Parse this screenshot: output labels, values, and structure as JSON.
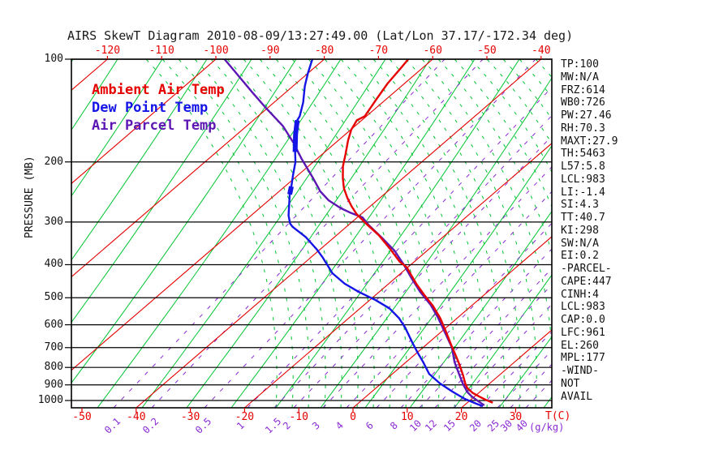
{
  "title": "AIRS SkewT Diagram 2010-08-09/13:27:49.00 (Lat/Lon 37.17/-172.34 deg)",
  "legend": [
    {
      "label": "Ambient Air Temp",
      "color": "#e60000"
    },
    {
      "label": "Dew Point Temp",
      "color": "#1414e6"
    },
    {
      "label": "Air Parcel Temp",
      "color": "#5c16b4"
    }
  ],
  "stats": [
    "TP:100",
    "MW:N/A",
    "FRZ:614",
    "WB0:726",
    "PW:27.46",
    "RH:70.3",
    "MAXT:27.9",
    "TH:5463",
    "L57:5.8",
    "LCL:983",
    "LI:-1.4",
    "SI:4.3",
    "TT:40.7",
    "KI:298",
    "SW:N/A",
    "EI:0.2",
    "-PARCEL-",
    "CAPE:447",
    "CINH:4",
    "LCL:983",
    "CAP:0.0",
    "LFC:961",
    "EL:260",
    "MPL:177",
    "-WIND-",
    "NOT",
    "AVAIL"
  ],
  "chart_data": {
    "type": "line",
    "subtype": "skew-t-log-p",
    "title": "AIRS SkewT Diagram 2010-08-09/13:27:49.00 (Lat/Lon 37.17/-172.34 deg)",
    "pressure_axis": {
      "label": "PRESSURE (MB)",
      "levels": [
        100,
        200,
        300,
        400,
        500,
        600,
        700,
        800,
        900,
        1000
      ],
      "log": true
    },
    "top_axis": {
      "unit": "degC",
      "labels": [
        -120,
        -110,
        -100,
        -90,
        -80,
        -70,
        -60,
        -50,
        -40
      ]
    },
    "bottom_axis": {
      "unit_label": "T(C)",
      "labels": [
        -50,
        -40,
        -30,
        -20,
        -10,
        0,
        10,
        20,
        30
      ]
    },
    "mixing_axis": {
      "unit_label": "(g/kg)",
      "labels": [
        [
          "0.1",
          140
        ],
        [
          "0.2",
          187
        ],
        [
          "0.5",
          252
        ],
        [
          "1",
          305
        ],
        [
          "1.5",
          338
        ],
        [
          "2",
          362
        ],
        [
          "3",
          398
        ],
        [
          "4",
          427
        ],
        [
          "6",
          464
        ],
        [
          "8",
          494
        ],
        [
          "10",
          517
        ],
        [
          "12",
          536
        ],
        [
          "15",
          559
        ],
        [
          "20",
          591
        ],
        [
          "25",
          613
        ],
        [
          "30",
          629
        ],
        [
          "40",
          648
        ]
      ]
    },
    "grid": {
      "isotherm_step_c": 20,
      "colors": {
        "isotherm": "#e60000",
        "dry_adiabat": "#00c432",
        "moist_adiabat": "#00c432",
        "mixing_ratio": "#8a2bd6",
        "pressure_line": "#000000",
        "hatch": "#5a10b0"
      }
    },
    "series": [
      {
        "name": "Ambient Air Temp",
        "color": "#e60000",
        "units": [
          "degC",
          "mb"
        ],
        "points": [
          [
            -64.5,
            100
          ],
          [
            -63.9,
            107
          ],
          [
            -63.1,
            118
          ],
          [
            -61.8,
            131
          ],
          [
            -60.3,
            147
          ],
          [
            -60.9,
            151
          ],
          [
            -59.9,
            161
          ],
          [
            -58.2,
            173
          ],
          [
            -55.7,
            190
          ],
          [
            -53.6,
            206
          ],
          [
            -51.1,
            223
          ],
          [
            -48.7,
            239
          ],
          [
            -46.0,
            255
          ],
          [
            -43.4,
            270
          ],
          [
            -40.9,
            284
          ],
          [
            -37.1,
            303
          ],
          [
            -32.2,
            328
          ],
          [
            -27.3,
            359
          ],
          [
            -22.7,
            392
          ],
          [
            -20.2,
            407
          ],
          [
            -14.9,
            455
          ],
          [
            -11.2,
            489
          ],
          [
            -7.1,
            528
          ],
          [
            -3.1,
            574
          ],
          [
            0.6,
            625
          ],
          [
            4.5,
            685
          ],
          [
            7.5,
            734
          ],
          [
            10.5,
            787
          ],
          [
            13.5,
            847
          ],
          [
            15.7,
            896
          ],
          [
            16.9,
            920
          ],
          [
            18.8,
            949
          ],
          [
            20.9,
            974
          ],
          [
            23.1,
            999
          ],
          [
            24.7,
            1015
          ]
        ]
      },
      {
        "name": "Dew Point Temp",
        "color": "#1414e6",
        "units": [
          "degC",
          "mb"
        ],
        "points": [
          [
            -82.2,
            100
          ],
          [
            -80.0,
            110
          ],
          [
            -77.8,
            120
          ],
          [
            -74.6,
            134
          ],
          [
            -72.3,
            147
          ],
          [
            -71.9,
            151
          ],
          [
            -69.2,
            166
          ],
          [
            -65.5,
            187
          ],
          [
            -63.3,
            200
          ],
          [
            -61.0,
            218
          ],
          [
            -58.8,
            236
          ],
          [
            -57.4,
            249
          ],
          [
            -55.4,
            266
          ],
          [
            -53.1,
            287
          ],
          [
            -51.1,
            303
          ],
          [
            -49.9,
            310
          ],
          [
            -45.3,
            332
          ],
          [
            -40.6,
            361
          ],
          [
            -37.8,
            381
          ],
          [
            -32.6,
            424
          ],
          [
            -28.1,
            455
          ],
          [
            -23.7,
            481
          ],
          [
            -18.9,
            508
          ],
          [
            -14.6,
            537
          ],
          [
            -10.7,
            574
          ],
          [
            -7.6,
            611
          ],
          [
            -3.0,
            677
          ],
          [
            0.1,
            724
          ],
          [
            3.1,
            771
          ],
          [
            6.8,
            836
          ],
          [
            10.8,
            891
          ],
          [
            14.8,
            941
          ],
          [
            18.7,
            989
          ],
          [
            21.9,
            1022
          ],
          [
            23.6,
            1039
          ]
        ],
        "thick_marks_p": [
          [
            150,
            188
          ],
          [
            235,
            253
          ]
        ]
      },
      {
        "name": "Air Parcel Temp",
        "color": "#5c16b4",
        "units": [
          "degC",
          "mb"
        ],
        "points": [
          [
            -98.4,
            100
          ],
          [
            -92.2,
            112
          ],
          [
            -86.2,
            125
          ],
          [
            -80.3,
            139
          ],
          [
            -73.3,
            157
          ],
          [
            -67.7,
            176
          ],
          [
            -62.8,
            196
          ],
          [
            -56.6,
            223
          ],
          [
            -52.4,
            244
          ],
          [
            -49.0,
            259
          ],
          [
            -45.1,
            273
          ],
          [
            -42.2,
            282
          ],
          [
            -39.0,
            291
          ],
          [
            -36.3,
            306
          ],
          [
            -31.2,
            333
          ],
          [
            -26.0,
            364
          ],
          [
            -21.3,
            400
          ],
          [
            -17.0,
            438
          ],
          [
            -12.4,
            481
          ],
          [
            -7.7,
            525
          ],
          [
            -3.7,
            571
          ],
          [
            1.1,
            636
          ],
          [
            5.3,
            699
          ],
          [
            8.9,
            771
          ],
          [
            12.3,
            836
          ],
          [
            15.3,
            897
          ],
          [
            17.0,
            930
          ],
          [
            17.5,
            941
          ],
          [
            19.4,
            972
          ],
          [
            21.7,
            1005
          ],
          [
            23.7,
            1033
          ]
        ]
      }
    ],
    "cape_hatch": {
      "between": [
        "Ambient Air Temp",
        "Air Parcel Temp"
      ],
      "p_range_ambient": [
        283,
        950
      ],
      "p_range_parcel": [
        290,
        942
      ]
    },
    "indices": {
      "TP": "100",
      "MW": "N/A",
      "FRZ": "614",
      "WB0": "726",
      "PW": "27.46",
      "RH": "70.3",
      "MAXT": "27.9",
      "TH": "5463",
      "L57": "5.8",
      "LCL": "983",
      "LI": "-1.4",
      "SI": "4.3",
      "TT": "40.7",
      "KI": "298",
      "SW": "N/A",
      "EI": "0.2",
      "CAPE": "447",
      "CINH": "4",
      "LCL2": "983",
      "CAP": "0.0",
      "LFC": "961",
      "EL": "260",
      "MPL": "177",
      "WIND": "NOT AVAIL"
    }
  }
}
